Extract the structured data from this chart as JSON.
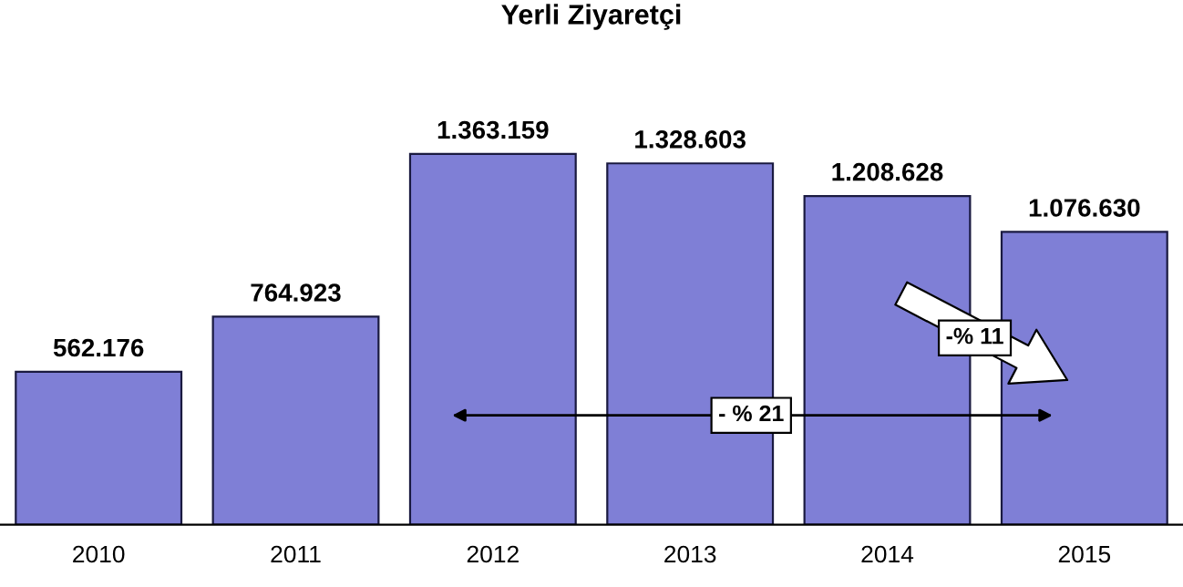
{
  "chart_data": {
    "type": "bar",
    "title": "Yerli Ziyaretçi",
    "categories": [
      "2010",
      "2011",
      "2012",
      "2013",
      "2014",
      "2015"
    ],
    "values": [
      562176,
      764923,
      1363159,
      1328603,
      1208628,
      1076630
    ],
    "value_labels": [
      "562.176",
      "764.923",
      "1.363.159",
      "1.328.603",
      "1.208.628",
      "1.076.630"
    ],
    "color": "#7f7fd6",
    "annotations": [
      "- % 21",
      "-% 11"
    ]
  }
}
